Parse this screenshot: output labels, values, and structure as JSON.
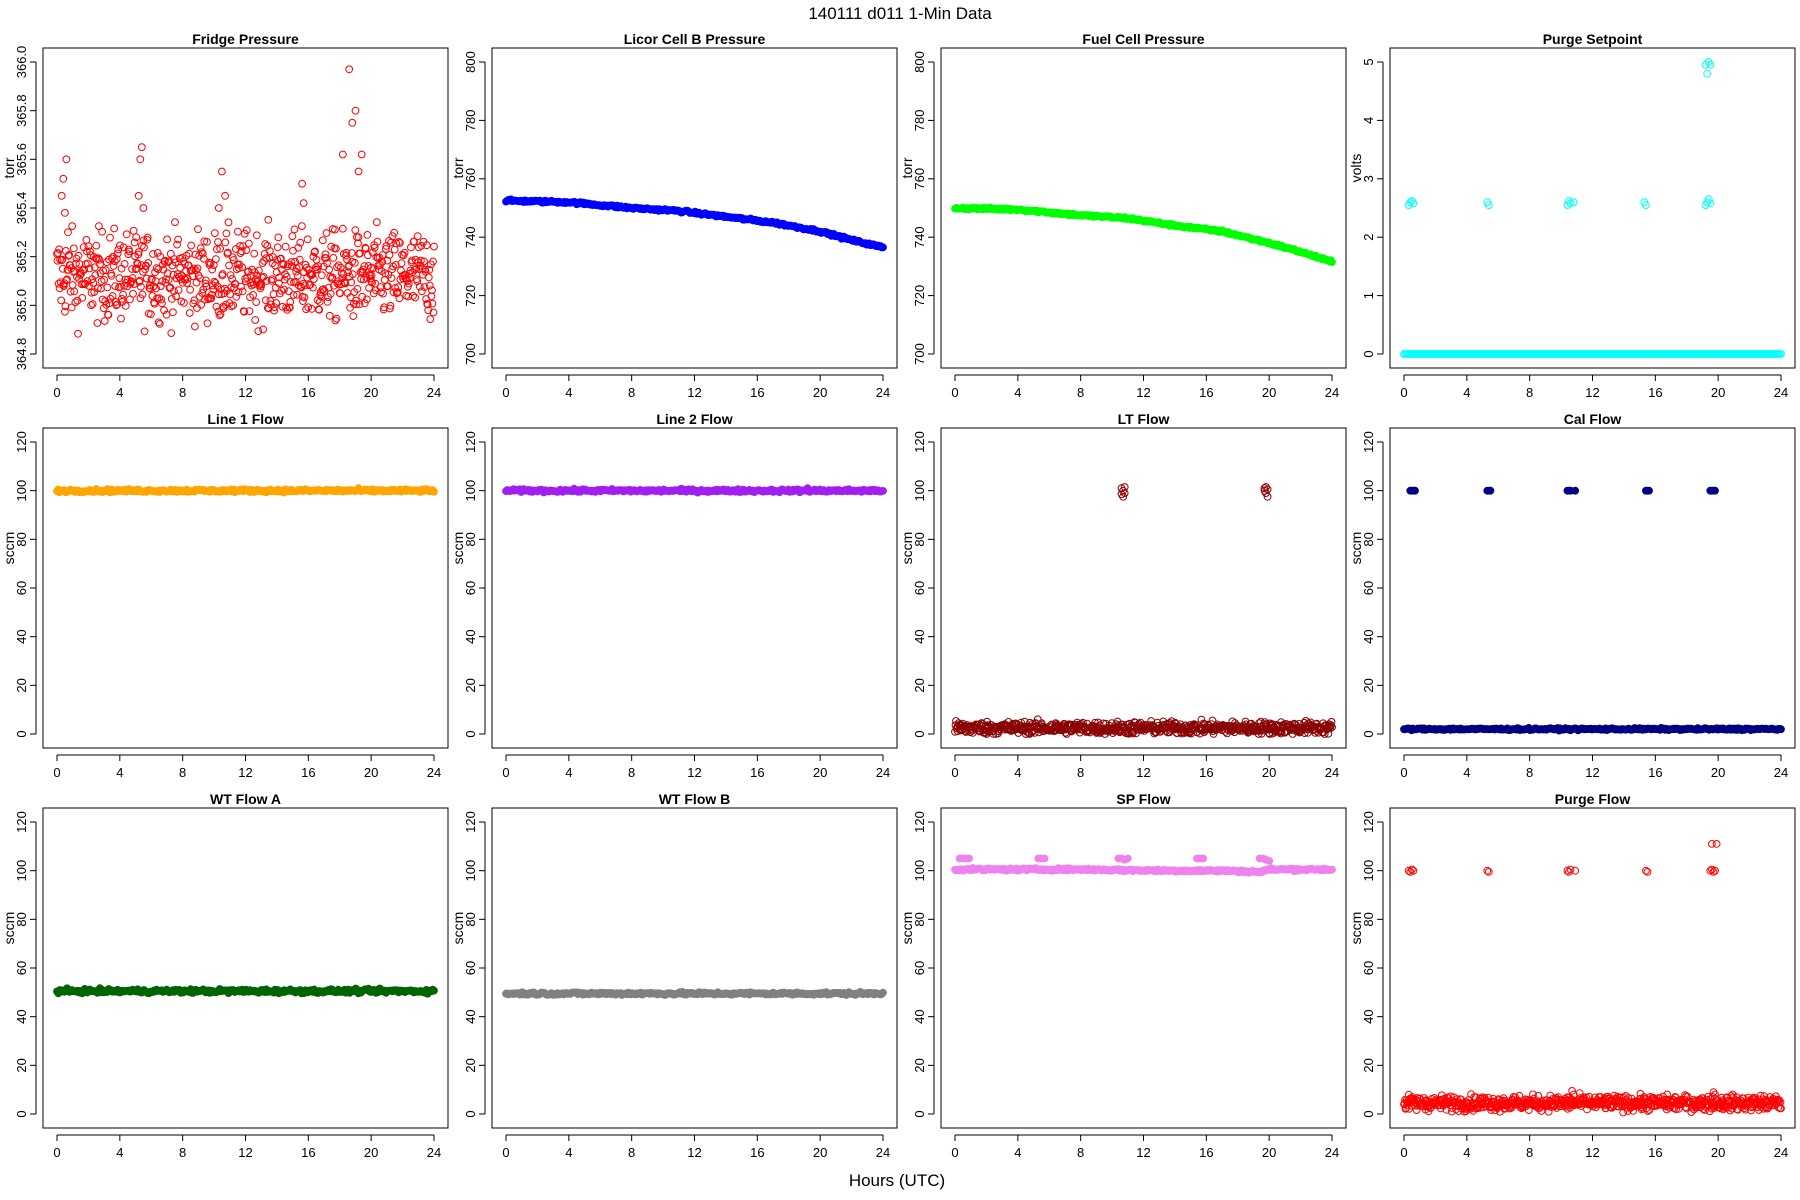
{
  "figure": {
    "title": "140111   d011   1-Min Data",
    "xlabel": "Hours (UTC)"
  },
  "chart_data": [
    {
      "type": "scatter",
      "title": "Fridge Pressure",
      "ylabel": "torr",
      "color": "#ff0000",
      "filled": false,
      "xlim": [
        0,
        24
      ],
      "xticks": [
        0,
        4,
        8,
        12,
        16,
        20,
        24
      ],
      "ylim": [
        364.8,
        366.0
      ],
      "yticks": [
        364.8,
        365.0,
        365.2,
        365.4,
        365.6,
        365.8,
        366.0
      ],
      "ytick_labels": [
        "364.8",
        "365.0",
        "365.2",
        "365.4",
        "365.6",
        "365.8",
        "366.0"
      ],
      "series": [
        {
          "kind": "noise",
          "x0": 0,
          "x1": 24,
          "center": 365.12,
          "spread": 0.09
        },
        {
          "kind": "spikes",
          "x": [
            0.3,
            0.4,
            0.5,
            0.6,
            0.7,
            5.2,
            5.3,
            5.4,
            5.5,
            10.3,
            10.5,
            10.7,
            15.6,
            15.7,
            18.2,
            18.6,
            18.8,
            19.0,
            19.2,
            19.4,
            20.0
          ],
          "y": [
            365.45,
            365.52,
            365.38,
            365.6,
            365.3,
            365.45,
            365.6,
            365.65,
            365.4,
            365.4,
            365.55,
            365.45,
            365.5,
            365.42,
            365.62,
            365.97,
            365.75,
            365.8,
            365.55,
            365.62,
            365.1
          ]
        }
      ]
    },
    {
      "type": "scatter",
      "title": "Licor Cell B Pressure",
      "ylabel": "torr",
      "color": "#0000ff",
      "filled": true,
      "xlim": [
        0,
        24
      ],
      "xticks": [
        0,
        4,
        8,
        12,
        16,
        20,
        24
      ],
      "ylim": [
        700,
        800
      ],
      "yticks": [
        700,
        720,
        740,
        760,
        780,
        800
      ],
      "ytick_labels": [
        "700",
        "720",
        "740",
        "760",
        "780",
        "800"
      ],
      "series": [
        {
          "kind": "curve",
          "x": [
            0,
            4,
            8,
            11,
            14,
            17,
            20,
            22,
            24
          ],
          "y": [
            752.5,
            752,
            750,
            749,
            747,
            745,
            742,
            739,
            736.5
          ]
        }
      ]
    },
    {
      "type": "scatter",
      "title": "Fuel Cell Pressure",
      "ylabel": "torr",
      "color": "#00ff00",
      "filled": true,
      "xlim": [
        0,
        24
      ],
      "xticks": [
        0,
        4,
        8,
        12,
        16,
        20,
        24
      ],
      "ylim": [
        700,
        800
      ],
      "yticks": [
        700,
        720,
        740,
        760,
        780,
        800
      ],
      "ytick_labels": [
        "700",
        "720",
        "740",
        "760",
        "780",
        "800"
      ],
      "series": [
        {
          "kind": "curve",
          "x": [
            0,
            4,
            8,
            11,
            14,
            17,
            20,
            22,
            24
          ],
          "y": [
            750,
            749.5,
            747.5,
            746.5,
            744,
            742,
            738,
            735,
            731.5
          ]
        }
      ]
    },
    {
      "type": "scatter",
      "title": "Purge Setpoint",
      "ylabel": "volts",
      "color": "#00ffff",
      "filled": false,
      "xlim": [
        0,
        24
      ],
      "xticks": [
        0,
        4,
        8,
        12,
        16,
        20,
        24
      ],
      "ylim": [
        0,
        5
      ],
      "yticks": [
        0,
        1,
        2,
        3,
        4,
        5
      ],
      "ytick_labels": [
        "0",
        "1",
        "2",
        "3",
        "4",
        "5"
      ],
      "series": [
        {
          "kind": "band",
          "x0": 0,
          "x1": 24,
          "y": 0.0,
          "jitter": 0
        },
        {
          "kind": "spikes",
          "x": [
            0.3,
            0.4,
            0.5,
            0.6,
            5.3,
            5.4,
            10.4,
            10.5,
            10.6,
            10.8,
            15.3,
            15.4,
            19.2,
            19.3,
            19.4,
            19.5,
            19.2,
            19.3,
            19.4,
            19.5
          ],
          "y": [
            2.55,
            2.6,
            2.62,
            2.58,
            2.6,
            2.55,
            2.55,
            2.62,
            2.58,
            2.6,
            2.6,
            2.55,
            2.55,
            2.6,
            2.65,
            2.58,
            4.95,
            4.8,
            5.0,
            4.95
          ]
        }
      ]
    },
    {
      "type": "scatter",
      "title": "Line 1 Flow",
      "ylabel": "sccm",
      "color": "#ffa500",
      "filled": true,
      "xlim": [
        0,
        24
      ],
      "xticks": [
        0,
        4,
        8,
        12,
        16,
        20,
        24
      ],
      "ylim": [
        0,
        120
      ],
      "yticks": [
        0,
        20,
        40,
        60,
        80,
        100,
        120
      ],
      "ytick_labels": [
        "0",
        "20",
        "40",
        "60",
        "80",
        "100",
        "120"
      ],
      "series": [
        {
          "kind": "band",
          "x0": 0,
          "x1": 24,
          "y": 100,
          "jitter": 0.3
        },
        {
          "kind": "spikes",
          "x": [
            19.2
          ],
          "y": [
            101
          ]
        }
      ]
    },
    {
      "type": "scatter",
      "title": "Line 2 Flow",
      "ylabel": "sccm",
      "color": "#a020f0",
      "filled": true,
      "xlim": [
        0,
        24
      ],
      "xticks": [
        0,
        4,
        8,
        12,
        16,
        20,
        24
      ],
      "ylim": [
        0,
        120
      ],
      "yticks": [
        0,
        20,
        40,
        60,
        80,
        100,
        120
      ],
      "ytick_labels": [
        "0",
        "20",
        "40",
        "60",
        "80",
        "100",
        "120"
      ],
      "series": [
        {
          "kind": "band",
          "x0": 0,
          "x1": 24,
          "y": 100,
          "jitter": 0.3
        },
        {
          "kind": "spikes",
          "x": [
            19.2
          ],
          "y": [
            101
          ]
        }
      ]
    },
    {
      "type": "scatter",
      "title": "LT Flow",
      "ylabel": "sccm",
      "color": "#8b0000",
      "filled": false,
      "xlim": [
        0,
        24
      ],
      "xticks": [
        0,
        4,
        8,
        12,
        16,
        20,
        24
      ],
      "ylim": [
        0,
        120
      ],
      "yticks": [
        0,
        20,
        40,
        60,
        80,
        100,
        120
      ],
      "ytick_labels": [
        "0",
        "20",
        "40",
        "60",
        "80",
        "100",
        "120"
      ],
      "series": [
        {
          "kind": "noise",
          "x0": 0,
          "x1": 24,
          "center": 2.5,
          "spread": 1.3
        },
        {
          "kind": "spikes",
          "x": [
            10.6,
            10.7,
            10.8,
            10.6,
            10.8,
            10.7,
            19.7,
            19.8,
            19.9,
            19.8,
            19.9,
            19.7
          ],
          "y": [
            101,
            100,
            101.5,
            98.5,
            99,
            97.5,
            101,
            101.5,
            100.5,
            99,
            97.5,
            100
          ]
        }
      ]
    },
    {
      "type": "scatter",
      "title": "Cal Flow",
      "ylabel": "sccm",
      "color": "#000080",
      "filled": true,
      "xlim": [
        0,
        24
      ],
      "xticks": [
        0,
        4,
        8,
        12,
        16,
        20,
        24
      ],
      "ylim": [
        0,
        120
      ],
      "yticks": [
        0,
        20,
        40,
        60,
        80,
        100,
        120
      ],
      "ytick_labels": [
        "0",
        "20",
        "40",
        "60",
        "80",
        "100",
        "120"
      ],
      "series": [
        {
          "kind": "band",
          "x0": 0,
          "x1": 24,
          "y": 2,
          "jitter": 0.2
        },
        {
          "kind": "spikes",
          "x": [
            0.4,
            0.5,
            0.6,
            0.7,
            5.3,
            5.4,
            5.5,
            10.4,
            10.5,
            10.6,
            10.9,
            15.4,
            15.5,
            15.6,
            19.5,
            19.6,
            19.7,
            19.8
          ],
          "y": [
            100,
            100,
            100,
            100,
            100,
            100,
            100,
            100,
            100,
            100,
            100,
            100,
            100,
            100,
            100,
            100,
            100,
            100
          ]
        }
      ]
    },
    {
      "type": "scatter",
      "title": "WT Flow A",
      "ylabel": "sccm",
      "color": "#006400",
      "filled": true,
      "xlim": [
        0,
        24
      ],
      "xticks": [
        0,
        4,
        8,
        12,
        16,
        20,
        24
      ],
      "ylim": [
        0,
        120
      ],
      "yticks": [
        0,
        20,
        40,
        60,
        80,
        100,
        120
      ],
      "ytick_labels": [
        "0",
        "20",
        "40",
        "60",
        "80",
        "100",
        "120"
      ],
      "series": [
        {
          "kind": "band",
          "x0": 0,
          "x1": 24,
          "y": 50.5,
          "jitter": 0.4
        }
      ]
    },
    {
      "type": "scatter",
      "title": "WT Flow B",
      "ylabel": "sccm",
      "color": "#808080",
      "filled": true,
      "xlim": [
        0,
        24
      ],
      "xticks": [
        0,
        4,
        8,
        12,
        16,
        20,
        24
      ],
      "ylim": [
        0,
        120
      ],
      "yticks": [
        0,
        20,
        40,
        60,
        80,
        100,
        120
      ],
      "ytick_labels": [
        "0",
        "20",
        "40",
        "60",
        "80",
        "100",
        "120"
      ],
      "series": [
        {
          "kind": "band",
          "x0": 0,
          "x1": 24,
          "y": 49.5,
          "jitter": 0.3
        }
      ]
    },
    {
      "type": "scatter",
      "title": "SP Flow",
      "ylabel": "sccm",
      "color": "#ee82ee",
      "filled": true,
      "xlim": [
        0,
        24
      ],
      "xticks": [
        0,
        4,
        8,
        12,
        16,
        20,
        24
      ],
      "ylim": [
        0,
        120
      ],
      "yticks": [
        0,
        20,
        40,
        60,
        80,
        100,
        120
      ],
      "ytick_labels": [
        "0",
        "20",
        "40",
        "60",
        "80",
        "100",
        "120"
      ],
      "series": [
        {
          "kind": "curve",
          "x": [
            0,
            4,
            8,
            11,
            14,
            17,
            19.5,
            20,
            24
          ],
          "y": [
            100.5,
            100.5,
            100.5,
            100.2,
            100,
            100,
            99.5,
            100.5,
            100.5
          ]
        },
        {
          "kind": "spikes",
          "x": [
            0.3,
            0.5,
            0.7,
            0.9,
            5.3,
            5.5,
            5.7,
            10.4,
            10.6,
            10.8,
            11.0,
            15.4,
            15.6,
            15.8,
            19.4,
            19.6,
            19.8,
            20.0
          ],
          "y": [
            105,
            105,
            105,
            105,
            105,
            105,
            105,
            105,
            105,
            104.5,
            105,
            105,
            105,
            105,
            105,
            105,
            104.5,
            104
          ]
        }
      ]
    },
    {
      "type": "scatter",
      "title": "Purge Flow",
      "ylabel": "sccm",
      "color": "#ff0000",
      "filled": false,
      "xlim": [
        0,
        24
      ],
      "xticks": [
        0,
        4,
        8,
        12,
        16,
        20,
        24
      ],
      "ylim": [
        0,
        120
      ],
      "yticks": [
        0,
        20,
        40,
        60,
        80,
        100,
        120
      ],
      "ytick_labels": [
        "0",
        "20",
        "40",
        "60",
        "80",
        "100",
        "120"
      ],
      "series": [
        {
          "kind": "noise",
          "x0": 0,
          "x1": 24,
          "center": 4.5,
          "spread": 1.5
        },
        {
          "kind": "spikes",
          "x": [
            0.3,
            0.4,
            0.5,
            0.6,
            5.3,
            5.4,
            10.4,
            10.5,
            10.6,
            10.9,
            15.4,
            15.5,
            19.5,
            19.6,
            19.7,
            19.8,
            19.6,
            19.9,
            10.7,
            10.8,
            19.7,
            19.8
          ],
          "y": [
            100,
            99.5,
            100.5,
            100,
            100,
            99.5,
            100,
            99.5,
            100.5,
            100,
            100,
            99.5,
            100,
            100.5,
            99.5,
            100,
            111,
            111,
            9.5,
            8,
            9,
            8
          ]
        }
      ]
    }
  ]
}
